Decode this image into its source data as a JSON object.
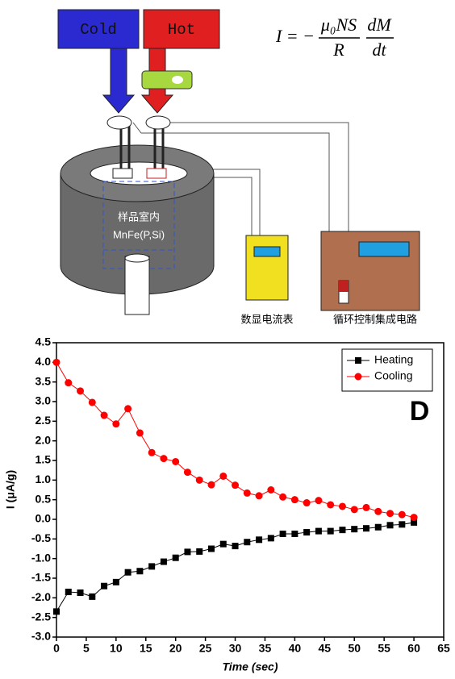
{
  "diagram": {
    "cold": "Cold",
    "hot": "Hot",
    "formula": {
      "lhs": "I = −",
      "num1": "μ₀NS",
      "den1": "R",
      "num2": "dM",
      "den2": "dt"
    },
    "chamber_label": "样品室内",
    "sample": "MnFe(P,Si)",
    "meter": "数显电流表",
    "controller": "循环控制集成电路"
  },
  "chart_data": {
    "type": "line",
    "panel_label": "D",
    "xlabel": "Time (sec)",
    "ylabel": "I (μA/g)",
    "x": [
      0,
      2,
      4,
      6,
      8,
      10,
      12,
      14,
      16,
      18,
      20,
      22,
      24,
      26,
      28,
      30,
      32,
      34,
      36,
      38,
      40,
      42,
      44,
      46,
      48,
      50,
      52,
      54,
      56,
      58,
      60
    ],
    "series": [
      {
        "name": "Heating",
        "color": "#000000",
        "marker": "square",
        "values": [
          -2.35,
          -1.85,
          -1.87,
          -1.97,
          -1.7,
          -1.6,
          -1.35,
          -1.32,
          -1.2,
          -1.08,
          -0.98,
          -0.83,
          -0.82,
          -0.75,
          -0.63,
          -0.68,
          -0.58,
          -0.52,
          -0.48,
          -0.37,
          -0.37,
          -0.33,
          -0.3,
          -0.3,
          -0.27,
          -0.25,
          -0.23,
          -0.2,
          -0.15,
          -0.13,
          -0.08
        ]
      },
      {
        "name": "Cooling",
        "color": "#ff0000",
        "marker": "circle",
        "values": [
          4.0,
          3.48,
          3.27,
          2.98,
          2.65,
          2.43,
          2.82,
          2.2,
          1.7,
          1.55,
          1.47,
          1.2,
          1.0,
          0.88,
          1.1,
          0.87,
          0.67,
          0.6,
          0.75,
          0.57,
          0.5,
          0.42,
          0.48,
          0.37,
          0.33,
          0.25,
          0.3,
          0.2,
          0.15,
          0.12,
          0.05
        ]
      }
    ],
    "xlim": [
      0,
      65
    ],
    "xticks": [
      0,
      5,
      10,
      15,
      20,
      25,
      30,
      35,
      40,
      45,
      50,
      55,
      60,
      65
    ],
    "ylim": [
      -3,
      4.5
    ],
    "yticks": [
      {
        "value": -3,
        "label": "-3.0"
      },
      -2.5,
      {
        "value": -2,
        "label": "-2.0"
      },
      -1.5,
      {
        "value": -1,
        "label": "-1.0"
      },
      -0.5,
      {
        "value": 0,
        "label": "0.0"
      },
      0.5,
      {
        "value": 1,
        "label": "1.0"
      },
      1.5,
      {
        "value": 2,
        "label": "2.0"
      },
      2.5,
      {
        "value": 3,
        "label": "3.0"
      },
      3.5,
      {
        "value": 4,
        "label": "4.0"
      },
      4.5
    ],
    "legend": "top-right"
  }
}
